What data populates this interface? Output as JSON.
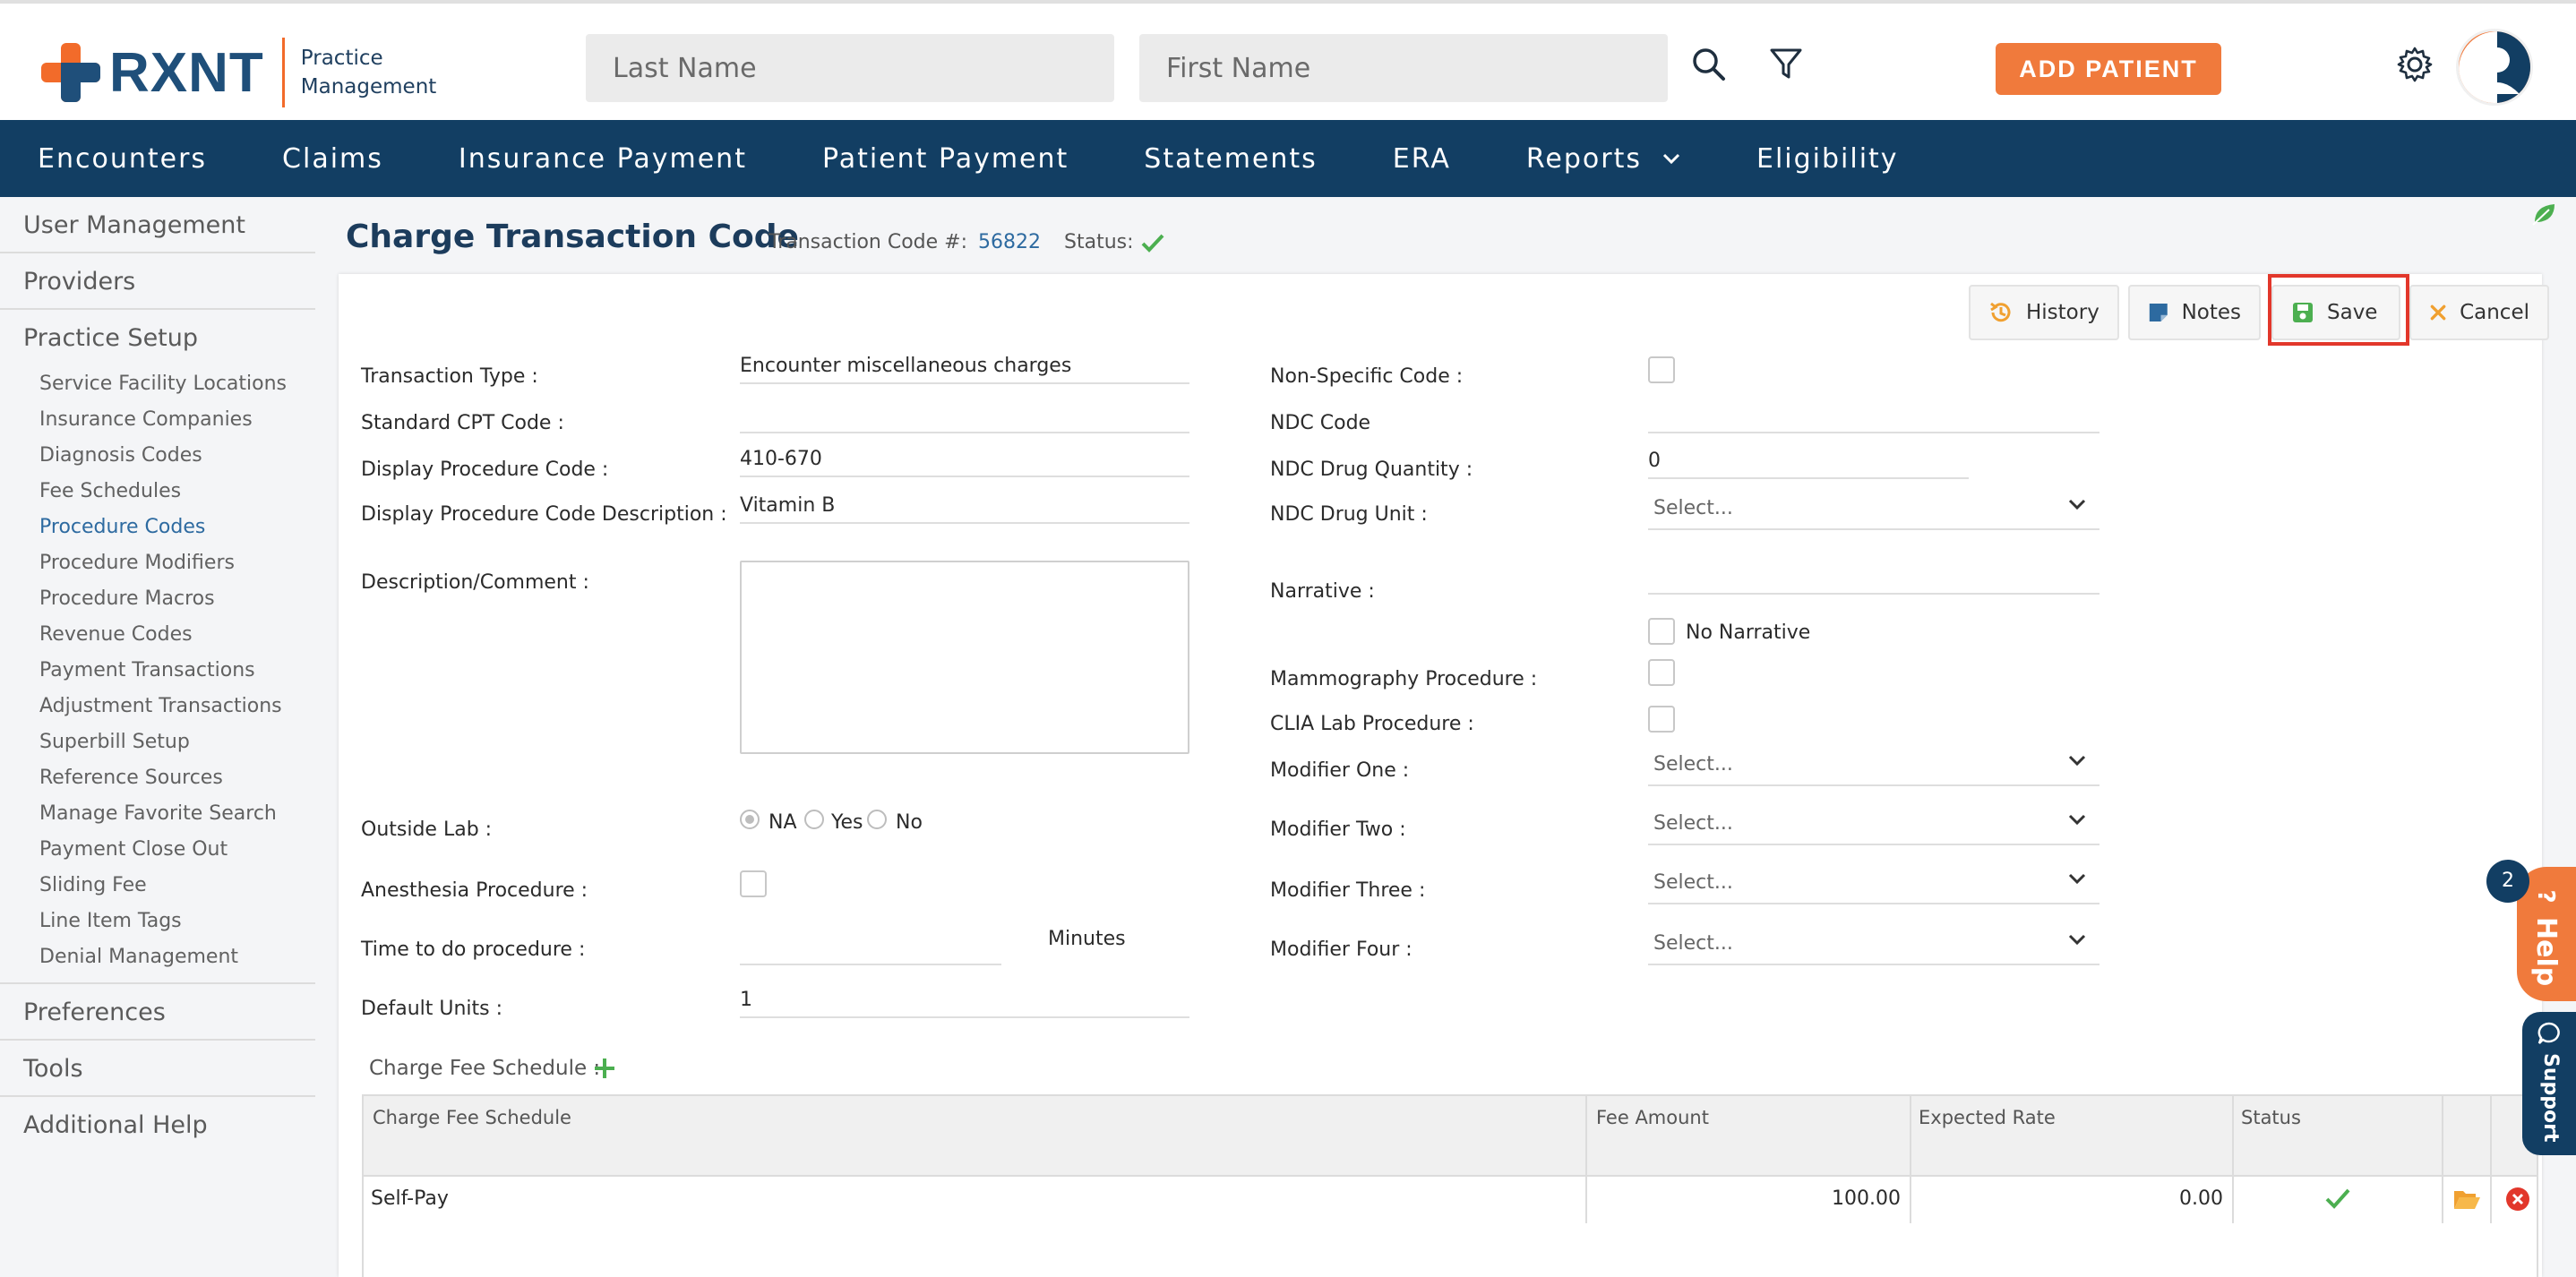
{
  "header": {
    "logo_text": "RXNT",
    "logo_sub_line1": "Practice",
    "logo_sub_line2": "Management",
    "last_name_placeholder": "Last Name",
    "first_name_placeholder": "First Name",
    "add_patient_label": "ADD PATIENT"
  },
  "nav": {
    "items": [
      "Encounters",
      "Claims",
      "Insurance Payment",
      "Patient Payment",
      "Statements",
      "ERA",
      "Reports",
      "Eligibility"
    ]
  },
  "sidebar": {
    "user_management": "User Management",
    "providers": "Providers",
    "practice_setup": "Practice Setup",
    "sub_items": [
      "Service Facility Locations",
      "Insurance Companies",
      "Diagnosis Codes",
      "Fee Schedules",
      "Procedure Codes",
      "Procedure Modifiers",
      "Procedure Macros",
      "Revenue Codes",
      "Payment Transactions",
      "Adjustment Transactions",
      "Superbill Setup",
      "Reference Sources",
      "Manage Favorite Search",
      "Payment Close Out",
      "Sliding Fee",
      "Line Item Tags",
      "Denial Management"
    ],
    "preferences": "Preferences",
    "tools": "Tools",
    "additional_help": "Additional Help"
  },
  "page": {
    "title": "Charge Transaction Code",
    "transaction_code_label": "Transaction Code #:",
    "transaction_code_value": "56822",
    "status_label": "Status:"
  },
  "toolbar": {
    "history": "History",
    "notes": "Notes",
    "save": "Save",
    "cancel": "Cancel"
  },
  "form": {
    "transaction_type_label": "Transaction Type :",
    "transaction_type_value": "Encounter miscellaneous charges",
    "standard_cpt_label": "Standard CPT Code :",
    "standard_cpt_value": "",
    "display_proc_code_label": "Display Procedure Code :",
    "display_proc_code_value": "410-670",
    "display_proc_desc_label": "Display Procedure Code Description :",
    "display_proc_desc_value": "Vitamin B",
    "description_label": "Description/Comment :",
    "outside_lab_label": "Outside Lab :",
    "outside_lab_na": "NA",
    "outside_lab_yes": "Yes",
    "outside_lab_no": "No",
    "anesthesia_label": "Anesthesia Procedure :",
    "time_label": "Time to do procedure :",
    "minutes_label": "Minutes",
    "default_units_label": "Default Units :",
    "default_units_value": "1",
    "non_specific_label": "Non-Specific Code :",
    "ndc_code_label": "NDC Code",
    "ndc_qty_label": "NDC Drug Quantity :",
    "ndc_qty_value": "0",
    "ndc_unit_label": "NDC Drug Unit :",
    "select_placeholder": "Select...",
    "narrative_label": "Narrative :",
    "no_narrative_label": "No Narrative",
    "mammography_label": "Mammography Procedure :",
    "clia_label": "CLIA Lab Procedure :",
    "modifier_one_label": "Modifier One :",
    "modifier_two_label": "Modifier Two :",
    "modifier_three_label": "Modifier Three :",
    "modifier_four_label": "Modifier Four :"
  },
  "fee_table": {
    "section_label": "Charge Fee Schedule :",
    "columns": [
      "Charge Fee Schedule",
      "Fee Amount",
      "Expected Rate",
      "Status"
    ],
    "rows": [
      {
        "schedule": "Self-Pay",
        "fee_amount": "100.00",
        "expected_rate": "0.00"
      }
    ]
  },
  "widgets": {
    "help_label": "Help",
    "help_badge": "2",
    "support_label": "Support"
  },
  "colors": {
    "brand_navy": "#123e63",
    "brand_orange": "#f07a3c",
    "link_blue": "#2d6aa0",
    "success_green": "#4caf50",
    "highlight_red": "#e2372b"
  }
}
